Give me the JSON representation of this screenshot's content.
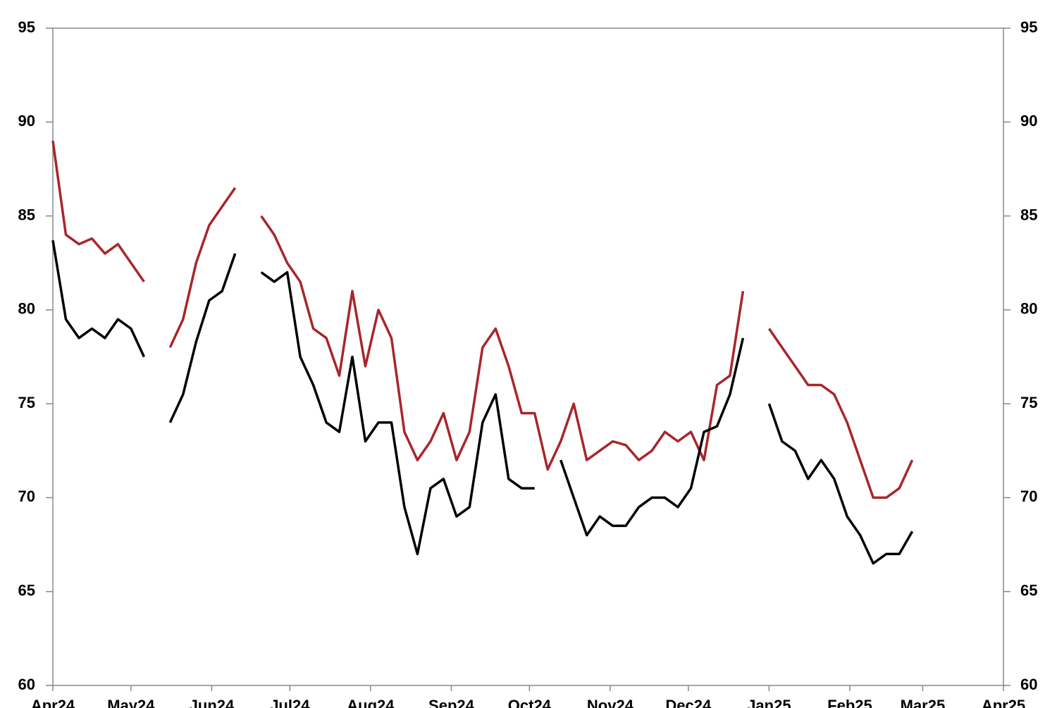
{
  "chart_data": {
    "type": "line",
    "x": [
      0,
      5,
      10,
      15,
      20,
      25,
      30,
      35,
      40,
      45,
      50,
      55,
      60,
      65,
      70,
      75,
      80,
      85,
      90,
      95,
      100,
      105,
      110,
      115,
      120,
      125,
      130,
      135,
      140,
      145,
      150,
      155,
      160,
      165,
      170,
      175,
      180,
      185,
      190,
      195,
      200,
      205,
      210,
      215,
      220,
      225,
      230,
      235,
      240,
      245,
      250,
      255,
      260,
      265,
      270,
      275,
      280,
      285,
      290,
      295,
      300,
      305,
      310,
      315,
      320,
      325,
      330
    ],
    "series": [
      {
        "color": "#a8262b",
        "values": [
          89,
          84,
          83.5,
          83.8,
          83,
          83.5,
          82.5,
          81.5,
          null,
          78,
          79.5,
          82.5,
          84.5,
          85.5,
          86.5,
          null,
          85,
          84,
          82.5,
          81.5,
          79,
          78.5,
          76.5,
          81,
          77,
          80,
          78.5,
          73.5,
          72,
          73,
          74.5,
          72,
          73.5,
          78,
          79,
          77,
          74.5,
          74.5,
          71.5,
          73,
          75,
          72,
          72.5,
          73,
          72.8,
          72,
          72.5,
          73.5,
          73,
          73.5,
          72,
          76,
          76.5,
          81,
          null,
          79,
          78,
          77,
          76,
          76,
          75.5,
          74,
          72,
          70,
          70,
          70.5,
          72
        ]
      },
      {
        "color": "#000000",
        "values": [
          83.7,
          79.5,
          78.5,
          79,
          78.5,
          79.5,
          79,
          77.5,
          null,
          74,
          75.5,
          78.3,
          80.5,
          81,
          83,
          null,
          82,
          81.5,
          82,
          77.5,
          76,
          74,
          73.5,
          77.5,
          73,
          74,
          74,
          69.5,
          67,
          70.5,
          71,
          69,
          69.5,
          74,
          75.5,
          71,
          70.5,
          70.5,
          null,
          72,
          70,
          68,
          69,
          68.5,
          68.5,
          69.5,
          70,
          70,
          69.5,
          70.5,
          73.5,
          73.8,
          75.5,
          78.5,
          null,
          75,
          73,
          72.5,
          71,
          72,
          71,
          69,
          68,
          66.5,
          67,
          67,
          68.2
        ]
      }
    ],
    "xlim": [
      0,
      365
    ],
    "xticks": [
      {
        "value": 0,
        "label": "Apr24"
      },
      {
        "value": 30,
        "label": "May24"
      },
      {
        "value": 61,
        "label": "Jun24"
      },
      {
        "value": 91,
        "label": "Jul24"
      },
      {
        "value": 122,
        "label": "Aug24"
      },
      {
        "value": 153,
        "label": "Sep24"
      },
      {
        "value": 183,
        "label": "Oct24"
      },
      {
        "value": 214,
        "label": "Nov24"
      },
      {
        "value": 244,
        "label": "Dec24"
      },
      {
        "value": 275,
        "label": "Jan25"
      },
      {
        "value": 306,
        "label": "Feb25"
      },
      {
        "value": 334,
        "label": "Mar25"
      },
      {
        "value": 365,
        "label": "Apr25"
      }
    ],
    "ylim": [
      60,
      95
    ],
    "yticks": [
      60,
      65,
      70,
      75,
      80,
      85,
      90,
      95
    ],
    "y2lim": [
      60,
      95
    ],
    "y2ticks": [
      60,
      65,
      70,
      75,
      80,
      85,
      90,
      95
    ]
  }
}
